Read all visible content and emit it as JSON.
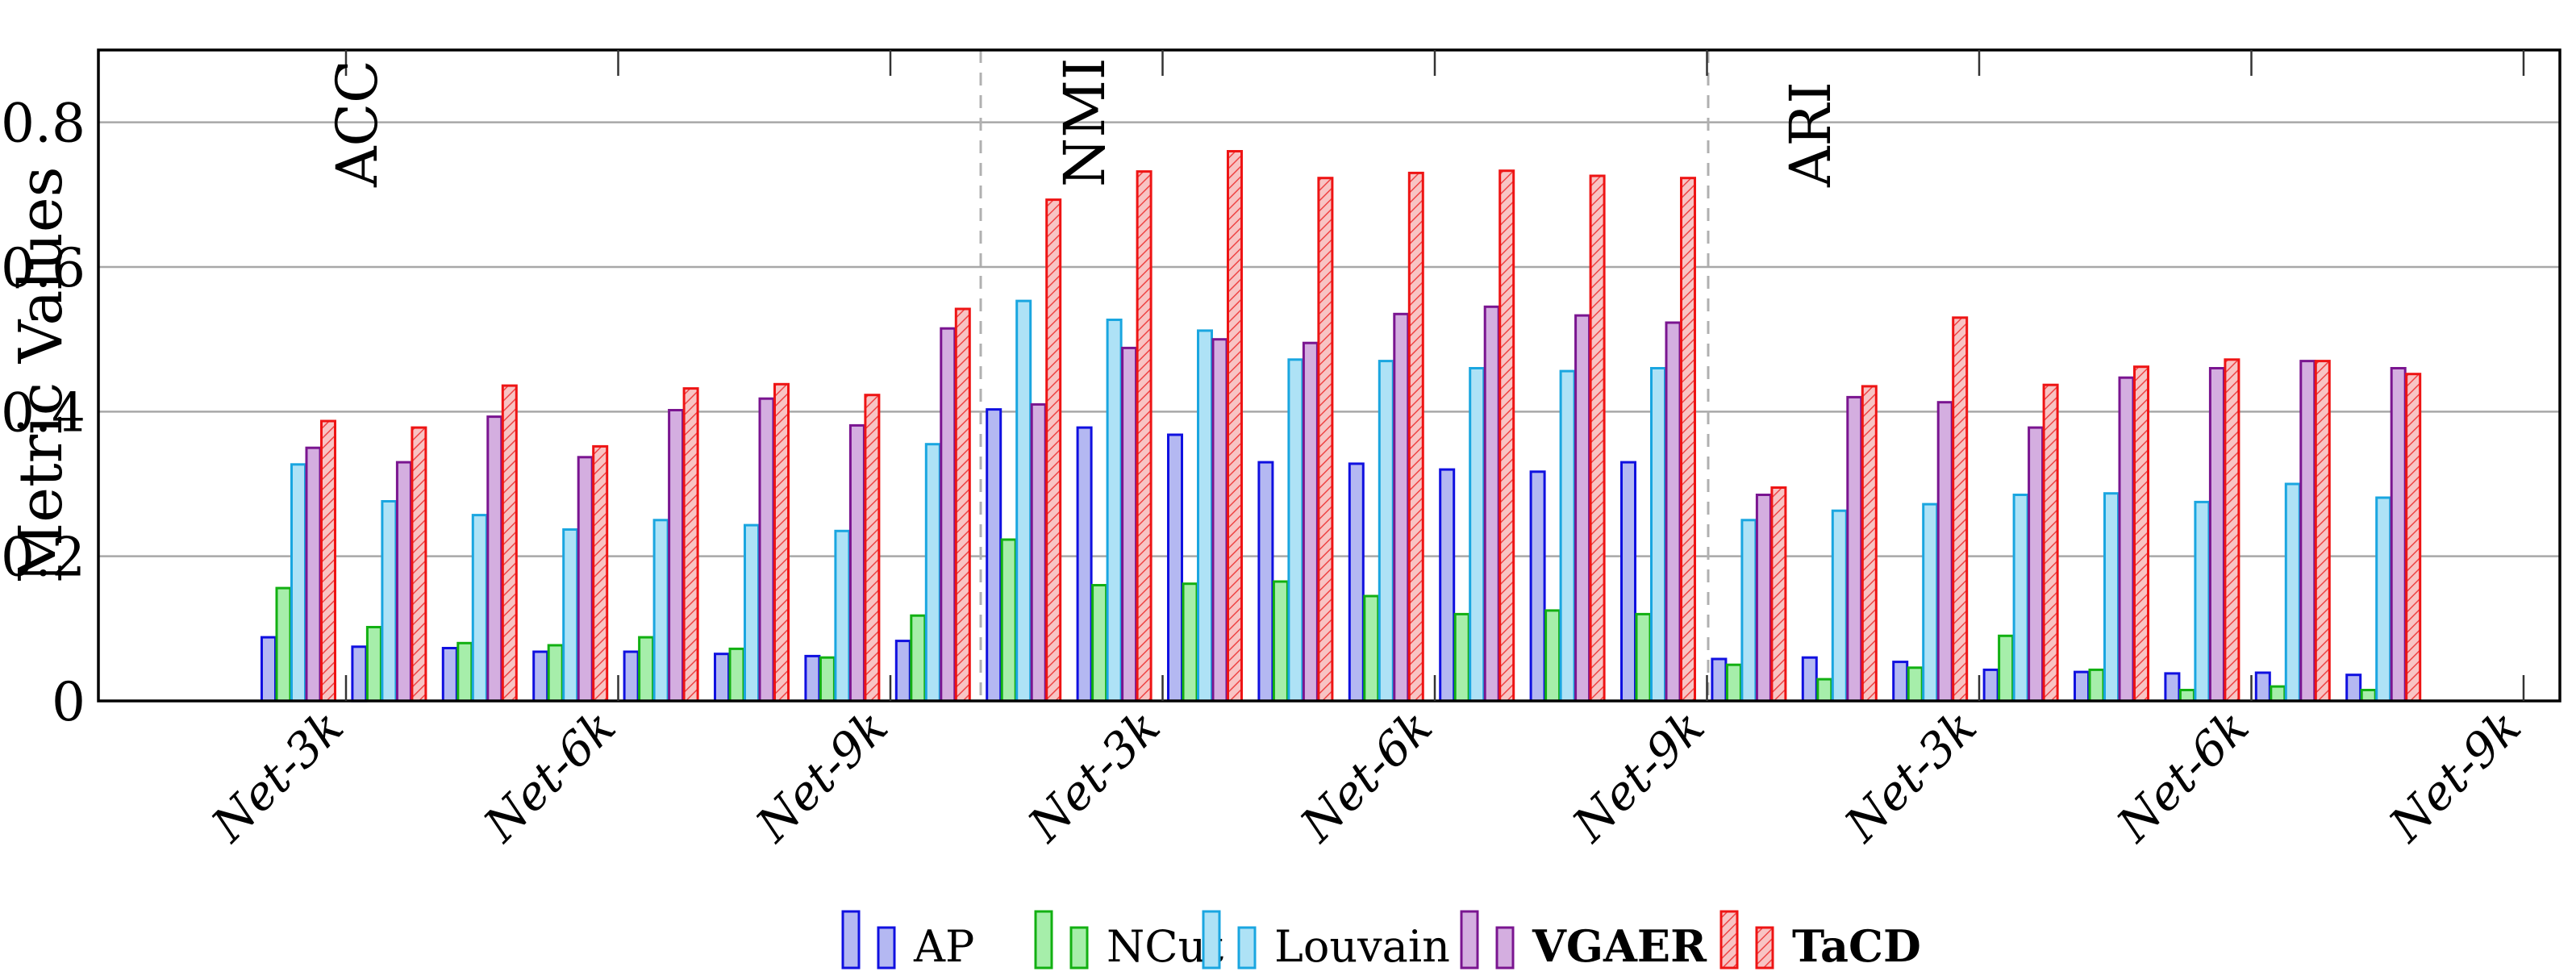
{
  "chart_data": {
    "type": "bar",
    "ylabel": "Metric Values",
    "ylim": [
      0,
      0.9
    ],
    "yticks": [
      0,
      0.2,
      0.4,
      0.6,
      0.8
    ],
    "ytick_labels": [
      "0",
      "0.2",
      "0.4",
      "0.6",
      "0.8"
    ],
    "grid": true,
    "legend_position": "bottom",
    "sections": [
      "ACC",
      "NMI",
      "ARI"
    ],
    "xtick_labels": [
      "Net-3k",
      "Net-6k",
      "Net-9k",
      "Net-3k",
      "Net-6k",
      "Net-9k",
      "Net-3k",
      "Net-6k",
      "Net-9k"
    ],
    "series": [
      {
        "name": "AP",
        "bold": false,
        "color": "#1010e0",
        "fill": "#b4b8f2",
        "hatch": false,
        "values": [
          0.088,
          0.075,
          0.073,
          0.068,
          0.068,
          0.065,
          0.062,
          0.083,
          0.403,
          0.378,
          0.368,
          0.33,
          0.328,
          0.32,
          0.317,
          0.33,
          0.058,
          0.06,
          0.054,
          0.043,
          0.04,
          0.038,
          0.039,
          0.036
        ]
      },
      {
        "name": "NCut",
        "bold": false,
        "color": "#12b012",
        "fill": "#a6eeaa",
        "hatch": false,
        "values": [
          0.156,
          0.102,
          0.08,
          0.077,
          0.088,
          0.072,
          0.06,
          0.118,
          0.223,
          0.16,
          0.162,
          0.165,
          0.145,
          0.12,
          0.125,
          0.12,
          0.05,
          0.03,
          0.046,
          0.09,
          0.043,
          0.015,
          0.02,
          0.015
        ]
      },
      {
        "name": "Louvain",
        "bold": false,
        "color": "#1aa6e0",
        "fill": "#aee2f6",
        "hatch": false,
        "values": [
          0.327,
          0.276,
          0.257,
          0.237,
          0.25,
          0.243,
          0.235,
          0.355,
          0.553,
          0.527,
          0.512,
          0.472,
          0.47,
          0.46,
          0.456,
          0.46,
          0.25,
          0.263,
          0.272,
          0.285,
          0.287,
          0.275,
          0.3,
          0.281
        ]
      },
      {
        "name": "VGAER",
        "bold": true,
        "color": "#7a1590",
        "fill": "#d4aee0",
        "hatch": false,
        "values": [
          0.35,
          0.33,
          0.393,
          0.337,
          0.402,
          0.418,
          0.381,
          0.515,
          0.41,
          0.488,
          0.5,
          0.495,
          0.535,
          0.545,
          0.533,
          0.523,
          0.285,
          0.42,
          0.413,
          0.378,
          0.447,
          0.46,
          0.47,
          0.46
        ]
      },
      {
        "name": "TaCD",
        "bold": true,
        "color": "#ee1414",
        "fill": "#f6b0b0",
        "hatch": true,
        "values": [
          0.387,
          0.378,
          0.436,
          0.352,
          0.432,
          0.438,
          0.423,
          0.542,
          0.693,
          0.732,
          0.76,
          0.723,
          0.73,
          0.733,
          0.726,
          0.723,
          0.295,
          0.435,
          0.53,
          0.437,
          0.462,
          0.472,
          0.47,
          0.452
        ]
      }
    ]
  }
}
